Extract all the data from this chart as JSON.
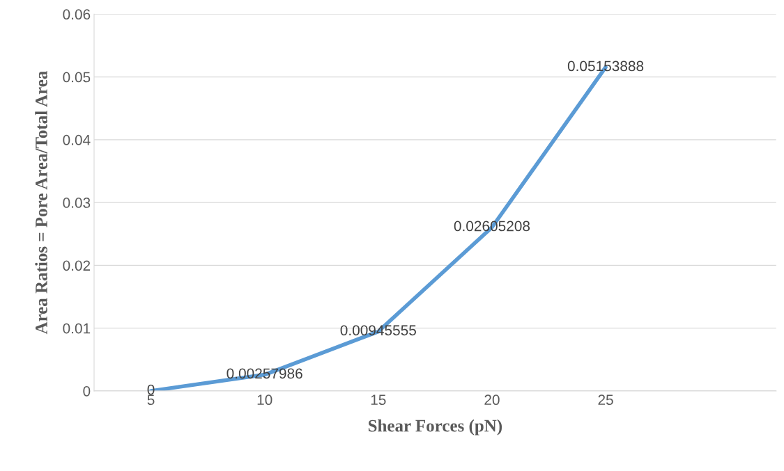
{
  "chart_data": {
    "type": "line",
    "xlabel": "Shear Forces (pN)",
    "ylabel": "Area Ratios = Pore Area/Total Area",
    "categories": [
      "5",
      "10",
      "15",
      "20",
      "25",
      null
    ],
    "series": [
      {
        "color": "#5b9bd5",
        "values": [
          0,
          0.00257986,
          0.00945555,
          0.02605208,
          0.05153888,
          null
        ]
      }
    ],
    "ylim": [
      0,
      0.06
    ],
    "yticks": [
      0,
      0.01,
      0.02,
      0.03,
      0.04,
      0.05,
      0.06
    ],
    "grid": "y",
    "data_labels": true,
    "marker": "none",
    "line_style": "solid"
  }
}
